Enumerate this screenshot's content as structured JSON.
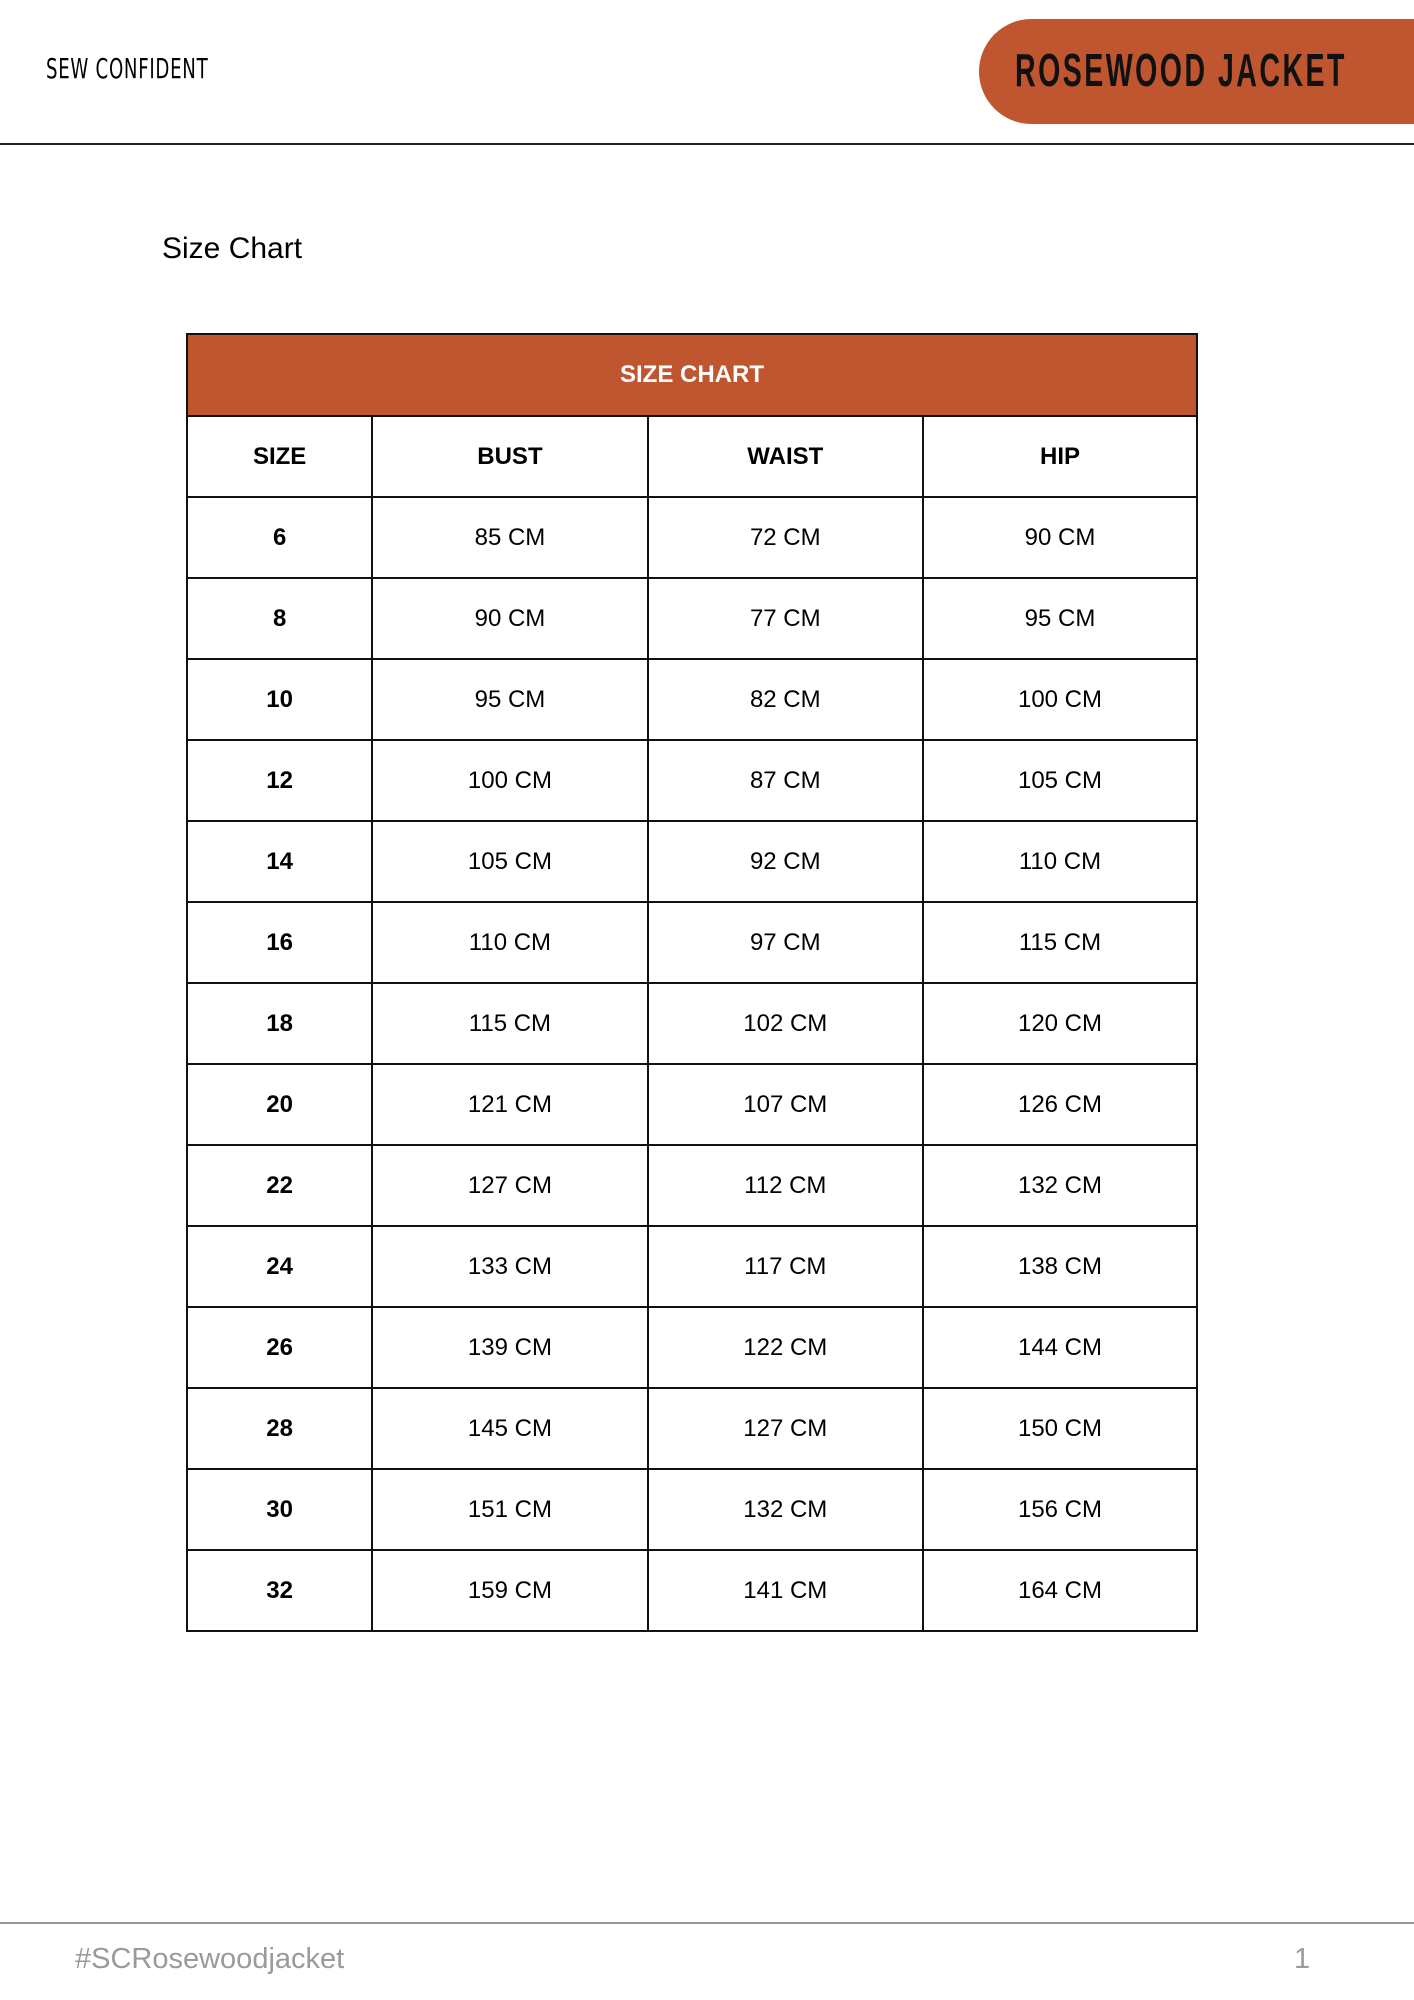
{
  "header": {
    "brand": "SEW CONFIDENT",
    "pattern_name": "ROSEWOOD JACKET",
    "accent_color": "#bf5630"
  },
  "page_title": "Size Chart",
  "table": {
    "caption": "SIZE CHART",
    "columns": [
      "SIZE",
      "BUST",
      "WAIST",
      "HIP"
    ],
    "rows": [
      [
        "6",
        "85 CM",
        "72 CM",
        "90 CM"
      ],
      [
        "8",
        "90 CM",
        "77 CM",
        "95 CM"
      ],
      [
        "10",
        "95 CM",
        "82 CM",
        "100 CM"
      ],
      [
        "12",
        "100 CM",
        "87 CM",
        "105 CM"
      ],
      [
        "14",
        "105 CM",
        "92 CM",
        "110 CM"
      ],
      [
        "16",
        "110 CM",
        "97 CM",
        "115 CM"
      ],
      [
        "18",
        "115 CM",
        "102 CM",
        "120 CM"
      ],
      [
        "20",
        "121 CM",
        "107 CM",
        "126 CM"
      ],
      [
        "22",
        "127 CM",
        "112 CM",
        "132 CM"
      ],
      [
        "24",
        "133 CM",
        "117 CM",
        "138 CM"
      ],
      [
        "26",
        "139 CM",
        "122 CM",
        "144 CM"
      ],
      [
        "28",
        "145 CM",
        "127 CM",
        "150 CM"
      ],
      [
        "30",
        "151 CM",
        "132 CM",
        "156 CM"
      ],
      [
        "32",
        "159 CM",
        "141 CM",
        "164 CM"
      ]
    ]
  },
  "footer": {
    "hashtag": "#SCRosewoodjacket",
    "page_number": "1"
  }
}
